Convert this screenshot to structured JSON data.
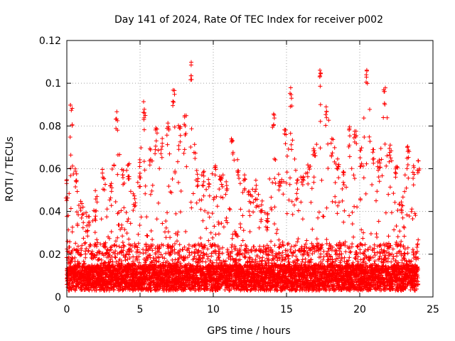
{
  "chart_data": {
    "type": "scatter",
    "title": "Day 141 of 2024, Rate Of TEC Index for receiver p002",
    "xlabel": "GPS time / hours",
    "ylabel": "ROTI / TECUs",
    "xlim": [
      0,
      25
    ],
    "ylim": [
      0,
      0.12
    ],
    "xticks": [
      0,
      5,
      10,
      15,
      20,
      25
    ],
    "yticks": [
      0,
      0.02,
      0.04,
      0.06,
      0.08,
      0.1,
      0.12
    ],
    "xtick_labels": [
      "0",
      "5",
      "10",
      "15",
      "20",
      "25"
    ],
    "ytick_labels": [
      "0",
      "0.02",
      "0.04",
      "0.06",
      "0.08",
      "0.1",
      "0.12"
    ],
    "grid": true,
    "marker": "plus",
    "color": "#ff0000",
    "series": [
      {
        "name": "",
        "envelope": {
          "x": [
            0.0,
            0.3,
            0.6,
            1.0,
            1.5,
            2.0,
            2.5,
            3.0,
            3.4,
            3.8,
            4.2,
            4.6,
            5.0,
            5.3,
            5.7,
            6.1,
            6.5,
            6.9,
            7.3,
            7.7,
            8.1,
            8.5,
            8.9,
            9.3,
            9.7,
            10.1,
            10.5,
            10.9,
            11.3,
            11.7,
            12.1,
            12.5,
            12.9,
            13.3,
            13.7,
            14.1,
            14.5,
            14.9,
            15.3,
            15.7,
            16.1,
            16.5,
            16.9,
            17.3,
            17.7,
            18.1,
            18.5,
            18.9,
            19.3,
            19.7,
            20.1,
            20.5,
            20.9,
            21.3,
            21.7,
            22.1,
            22.5,
            22.9,
            23.3,
            23.7,
            24.0
          ],
          "y": [
            0.055,
            0.09,
            0.06,
            0.045,
            0.04,
            0.05,
            0.06,
            0.055,
            0.087,
            0.062,
            0.065,
            0.05,
            0.065,
            0.093,
            0.07,
            0.08,
            0.075,
            0.082,
            0.097,
            0.08,
            0.085,
            0.111,
            0.06,
            0.06,
            0.055,
            0.062,
            0.06,
            0.058,
            0.075,
            0.065,
            0.06,
            0.05,
            0.055,
            0.045,
            0.04,
            0.088,
            0.06,
            0.08,
            0.098,
            0.055,
            0.06,
            0.062,
            0.07,
            0.107,
            0.09,
            0.075,
            0.065,
            0.06,
            0.08,
            0.08,
            0.07,
            0.108,
            0.07,
            0.065,
            0.099,
            0.075,
            0.065,
            0.05,
            0.072,
            0.062,
            0.066
          ]
        }
      }
    ]
  }
}
